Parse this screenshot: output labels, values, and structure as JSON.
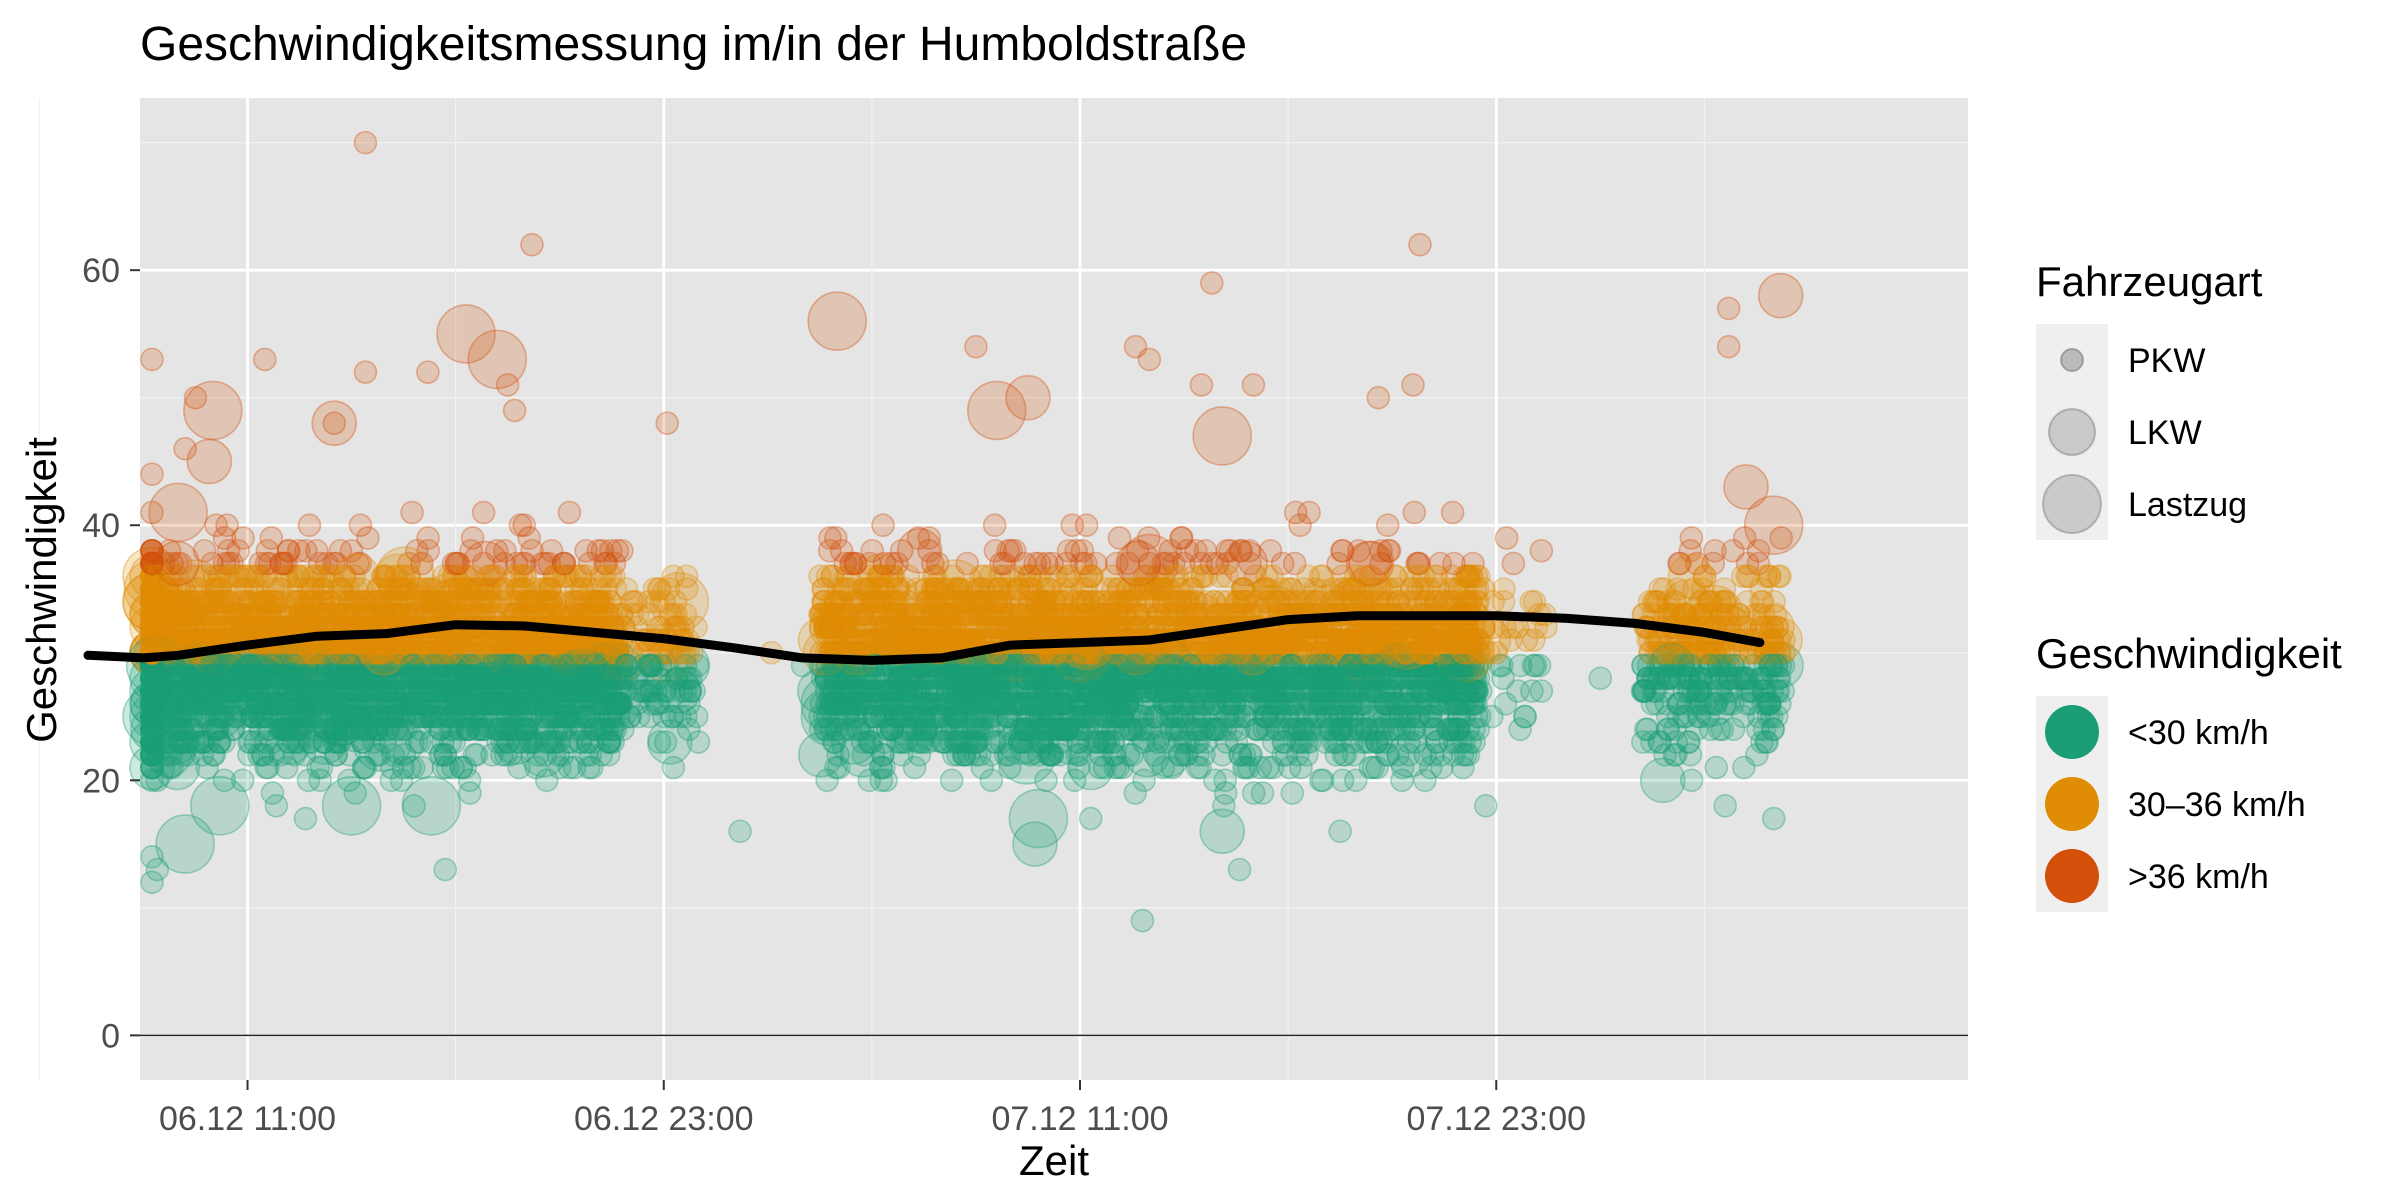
{
  "chart_data": {
    "type": "scatter",
    "title": "Geschwindigkeitsmessung im/in der Humboldstraße",
    "xlabel": "Zeit",
    "ylabel": "Geschwindigkeit",
    "x_unit": "hours",
    "xlim_hours": [
      -3.1,
      49.6
    ],
    "ylim": [
      -3.5,
      73.5
    ],
    "y_ticks": [
      0,
      20,
      40,
      60
    ],
    "x_ticks": [
      {
        "label": "06.12 11:00",
        "hours": 0
      },
      {
        "label": "06.12 23:00",
        "hours": 12
      },
      {
        "label": "07.12 11:00",
        "hours": 24
      },
      {
        "label": "07.12 23:00",
        "hours": 36
      }
    ],
    "grid": true,
    "zero_line": true,
    "legends": {
      "size": {
        "title": "Fahrzeugart",
        "entries": [
          "PKW",
          "LKW",
          "Lastzug"
        ]
      },
      "color": {
        "title": "Geschwindigkeit",
        "entries": [
          {
            "label": "<30 km/h",
            "color": "#1b9e77"
          },
          {
            "label": "30–36 km/h",
            "color": "#e08c06"
          },
          {
            "label": ">36 km/h",
            "color": "#d2500a"
          }
        ]
      },
      "placement": "right"
    },
    "smooth_line": {
      "x_hours": [
        -4.6,
        -3,
        -2,
        0,
        2,
        4,
        6,
        8,
        10,
        12,
        14,
        16,
        18,
        20,
        22,
        24,
        26,
        28,
        30,
        32,
        34,
        36,
        38,
        40,
        42,
        43.6
      ],
      "y": [
        29.8,
        29.6,
        29.8,
        30.6,
        31.3,
        31.5,
        32.2,
        32.1,
        31.6,
        31.1,
        30.4,
        29.6,
        29.4,
        29.6,
        30.6,
        30.8,
        31.0,
        31.8,
        32.6,
        32.9,
        32.9,
        32.9,
        32.7,
        32.3,
        31.6,
        30.8
      ]
    },
    "points": [
      {
        "x": -2.9,
        "y": 53,
        "type": "PKW"
      },
      {
        "x": -1.5,
        "y": 50,
        "type": "PKW"
      },
      {
        "x": -1.8,
        "y": 46,
        "type": "PKW"
      },
      {
        "x": -1.0,
        "y": 49,
        "type": "Lastzug"
      },
      {
        "x": -2.0,
        "y": 41,
        "type": "Lastzug"
      },
      {
        "x": -1.1,
        "y": 45,
        "type": "LKW"
      },
      {
        "x": -4.2,
        "y": 44,
        "type": "PKW"
      },
      {
        "x": 0.5,
        "y": 53,
        "type": "PKW"
      },
      {
        "x": 2.5,
        "y": 48,
        "type": "PKW"
      },
      {
        "x": 2.5,
        "y": 48,
        "type": "LKW"
      },
      {
        "x": 3.4,
        "y": 70,
        "type": "PKW"
      },
      {
        "x": 3.4,
        "y": 52,
        "type": "PKW"
      },
      {
        "x": 5.2,
        "y": 52,
        "type": "PKW"
      },
      {
        "x": 6.3,
        "y": 55,
        "type": "Lastzug"
      },
      {
        "x": 7.2,
        "y": 53,
        "type": "Lastzug"
      },
      {
        "x": 8.2,
        "y": 62,
        "type": "PKW"
      },
      {
        "x": 7.5,
        "y": 51,
        "type": "PKW"
      },
      {
        "x": 7.7,
        "y": 49,
        "type": "PKW"
      },
      {
        "x": 12.1,
        "y": 48,
        "type": "PKW"
      },
      {
        "x": 17.0,
        "y": 56,
        "type": "Lastzug"
      },
      {
        "x": 21.0,
        "y": 54,
        "type": "PKW"
      },
      {
        "x": 21.6,
        "y": 49,
        "type": "Lastzug"
      },
      {
        "x": 22.5,
        "y": 50,
        "type": "LKW"
      },
      {
        "x": 26.0,
        "y": 53,
        "type": "PKW"
      },
      {
        "x": 25.6,
        "y": 54,
        "type": "PKW"
      },
      {
        "x": 27.5,
        "y": 51,
        "type": "PKW"
      },
      {
        "x": 27.8,
        "y": 59,
        "type": "PKW"
      },
      {
        "x": 28.1,
        "y": 47,
        "type": "Lastzug"
      },
      {
        "x": 29.0,
        "y": 51,
        "type": "PKW"
      },
      {
        "x": 32.6,
        "y": 50,
        "type": "PKW"
      },
      {
        "x": 33.8,
        "y": 62,
        "type": "PKW"
      },
      {
        "x": 33.6,
        "y": 51,
        "type": "PKW"
      },
      {
        "x": 36.3,
        "y": 39,
        "type": "PKW"
      },
      {
        "x": 37.3,
        "y": 38,
        "type": "PKW"
      },
      {
        "x": 41.6,
        "y": 36,
        "type": "LKW"
      },
      {
        "x": 42.7,
        "y": 57,
        "type": "PKW"
      },
      {
        "x": 42.7,
        "y": 54,
        "type": "PKW"
      },
      {
        "x": 44.2,
        "y": 58,
        "type": "LKW"
      },
      {
        "x": 43.2,
        "y": 43,
        "type": "LKW"
      },
      {
        "x": 44.0,
        "y": 40,
        "type": "Lastzug"
      },
      {
        "x": -1.8,
        "y": 15,
        "type": "Lastzug"
      },
      {
        "x": -3.1,
        "y": 12,
        "type": "PKW"
      },
      {
        "x": -3.4,
        "y": 14,
        "type": "PKW"
      },
      {
        "x": -2.6,
        "y": 13,
        "type": "PKW"
      },
      {
        "x": -0.8,
        "y": 18,
        "type": "Lastzug"
      },
      {
        "x": 3.0,
        "y": 18,
        "type": "Lastzug"
      },
      {
        "x": 5.3,
        "y": 18,
        "type": "Lastzug"
      },
      {
        "x": 5.7,
        "y": 13,
        "type": "PKW"
      },
      {
        "x": 13.0,
        "y": 23,
        "type": "PKW"
      },
      {
        "x": 14.2,
        "y": 16,
        "type": "PKW"
      },
      {
        "x": 20.3,
        "y": 20,
        "type": "PKW"
      },
      {
        "x": 22.8,
        "y": 17,
        "type": "Lastzug"
      },
      {
        "x": 22.7,
        "y": 15,
        "type": "LKW"
      },
      {
        "x": 25.8,
        "y": 9,
        "type": "PKW"
      },
      {
        "x": 28.1,
        "y": 16,
        "type": "LKW"
      },
      {
        "x": 28.6,
        "y": 13,
        "type": "PKW"
      },
      {
        "x": 31.5,
        "y": 16,
        "type": "PKW"
      },
      {
        "x": 33.5,
        "y": 22,
        "type": "LKW"
      },
      {
        "x": 35.7,
        "y": 18,
        "type": "PKW"
      },
      {
        "x": 40.8,
        "y": 20,
        "type": "LKW"
      },
      {
        "x": 42.6,
        "y": 18,
        "type": "PKW"
      },
      {
        "x": 44.0,
        "y": 17,
        "type": "PKW"
      },
      {
        "x": 15.1,
        "y": 30,
        "type": "PKW"
      },
      {
        "x": 16.0,
        "y": 29,
        "type": "PKW"
      },
      {
        "x": 37.3,
        "y": 27,
        "type": "PKW"
      },
      {
        "x": 39.0,
        "y": 28,
        "type": "PKW"
      },
      {
        "x": 40.5,
        "y": 26,
        "type": "PKW"
      }
    ],
    "dense_regions": [
      {
        "x_range": [
          -4.7,
          10.8
        ],
        "y_center": 29.5,
        "y_spread": 6.2,
        "count": 3200
      },
      {
        "x_range": [
          10.8,
          13.0
        ],
        "y_center": 29.5,
        "y_spread": 5.5,
        "count": 120
      },
      {
        "x_range": [
          16.5,
          35.5
        ],
        "y_center": 29.5,
        "y_spread": 6.2,
        "count": 3400
      },
      {
        "x_range": [
          35.5,
          37.5
        ],
        "y_center": 30.5,
        "y_spread": 5.0,
        "count": 40
      },
      {
        "x_range": [
          40.2,
          44.3
        ],
        "y_center": 30.0,
        "y_spread": 6.0,
        "count": 380
      }
    ]
  }
}
